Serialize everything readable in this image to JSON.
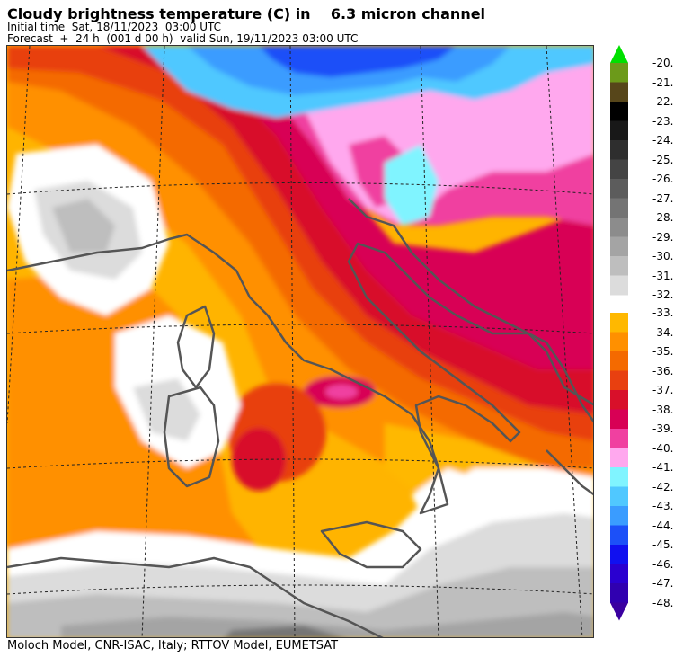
{
  "header": {
    "title": "Cloudy brightness temperature (C) in    6.3 micron channel",
    "initial_time": "Initial time  Sat, 18/11/2023  03:00 UTC",
    "forecast": "Forecast  +  24 h  (001 d 00 h)  valid Sun, 19/11/2023 03:00 UTC"
  },
  "footer": {
    "credit": "Moloch Model, CNR-ISAC, Italy; RTTOV Model, EUMETSAT"
  },
  "legend": {
    "upper_labels": [
      "-20.",
      "-21.",
      "-22.",
      "-23.",
      "-24.",
      "-25.",
      "-26.",
      "-27.",
      "-28.",
      "-29.",
      "-30.",
      "-31.",
      "-32."
    ],
    "upper_colors": [
      "#00e000",
      "#6c9a1a",
      "#57461a",
      "#000000",
      "#181818",
      "#2e2e2e",
      "#444444",
      "#5c5c5c",
      "#747474",
      "#8c8c8c",
      "#a4a4a4",
      "#bebebe",
      "#dcdcdc"
    ],
    "lower_labels": [
      "-33.",
      "-34.",
      "-35.",
      "-36.",
      "-37.",
      "-38.",
      "-39.",
      "-40.",
      "-41.",
      "-42.",
      "-43.",
      "-44.",
      "-45.",
      "-46.",
      "-47.",
      "-48."
    ],
    "lower_colors": [
      "#ffb800",
      "#ff9000",
      "#f46a00",
      "#e84010",
      "#d8102a",
      "#d80055",
      "#f040a0",
      "#ffa8ee",
      "#80f4ff",
      "#50c8ff",
      "#3a9cff",
      "#1c50f8",
      "#1010f0",
      "#2a00d0",
      "#3000b0",
      "#3a00a0"
    ]
  },
  "colors": {
    "background": "#ffb400",
    "coastline": "#555555",
    "graticule": "#222222"
  }
}
